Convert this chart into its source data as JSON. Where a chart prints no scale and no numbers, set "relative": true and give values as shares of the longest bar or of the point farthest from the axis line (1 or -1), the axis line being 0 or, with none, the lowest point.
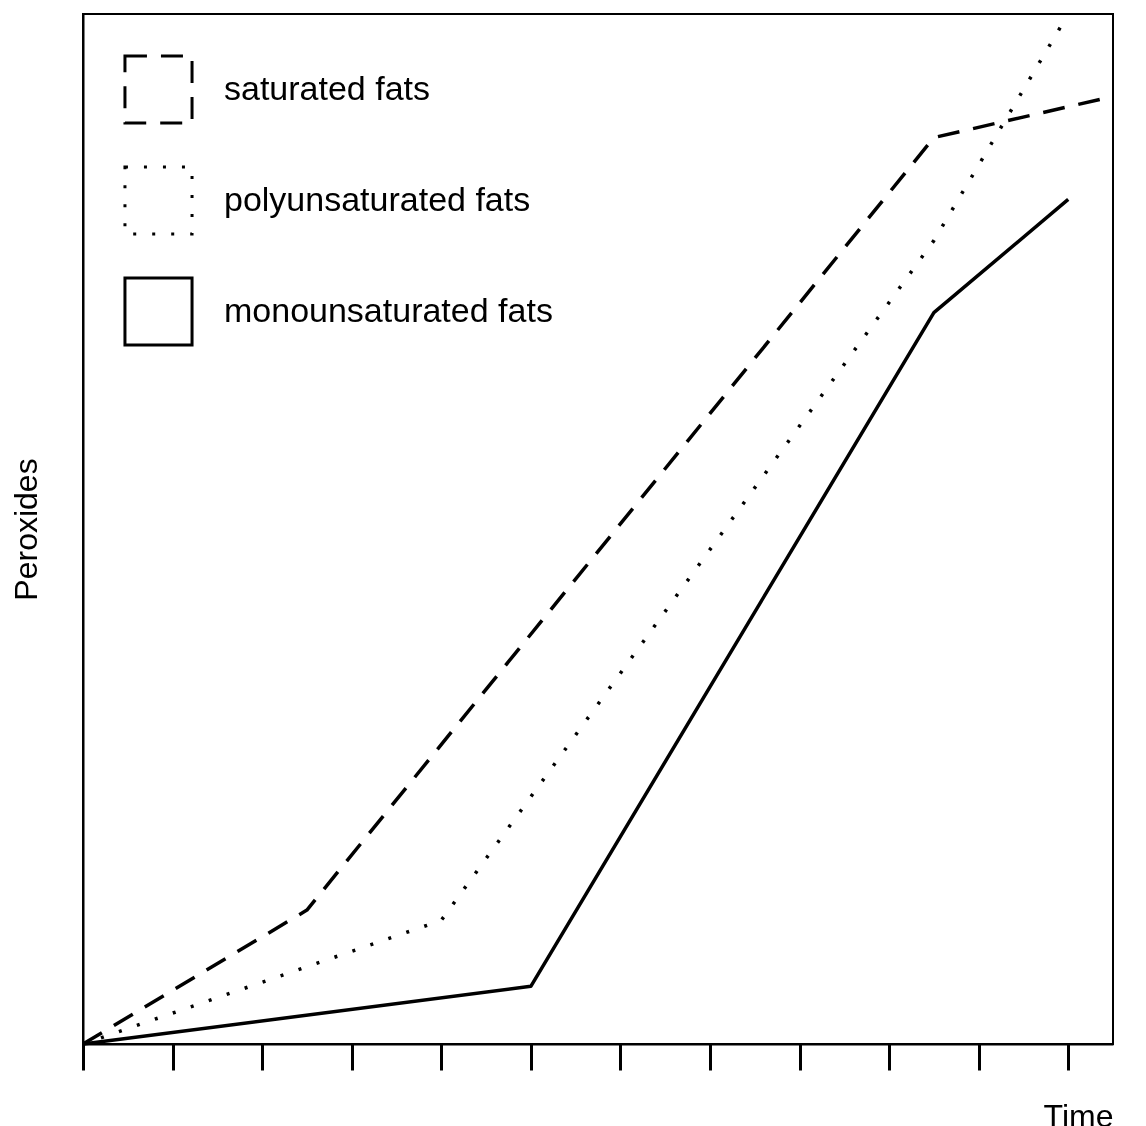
{
  "chart_data": {
    "type": "line",
    "xlabel": "Time",
    "ylabel": "Peroxides",
    "relative": true,
    "legend": "top left",
    "marker": "none",
    "categories": [
      null,
      null,
      null,
      null,
      null,
      null,
      null,
      null,
      null,
      null,
      null,
      null,
      null,
      null,
      null,
      null,
      null,
      null,
      null,
      null,
      null,
      null,
      null,
      null
    ],
    "series": [
      {
        "name": "saturated fats",
        "color": "#000000",
        "line_style": "dashed",
        "values": [
          0,
          null,
          null,
          null,
          null,
          0.13,
          null,
          null,
          null,
          null,
          null,
          null,
          null,
          null,
          null,
          null,
          null,
          null,
          null,
          0.88,
          null,
          null,
          null,
          0.92
        ]
      },
      {
        "name": "polyunsaturated fats",
        "color": "#000000",
        "line_style": "dotted",
        "values": [
          0,
          null,
          null,
          null,
          null,
          null,
          null,
          null,
          0.12,
          null,
          null,
          null,
          null,
          null,
          null,
          null,
          null,
          null,
          null,
          0.78,
          null,
          null,
          1.0,
          null
        ]
      },
      {
        "name": "monounsaturated fats",
        "color": "#000000",
        "line_style": "solid",
        "values": [
          0,
          null,
          null,
          null,
          null,
          null,
          null,
          null,
          null,
          null,
          0.056,
          null,
          null,
          null,
          null,
          null,
          null,
          null,
          null,
          0.71,
          null,
          null,
          0.82,
          null
        ]
      }
    ]
  }
}
